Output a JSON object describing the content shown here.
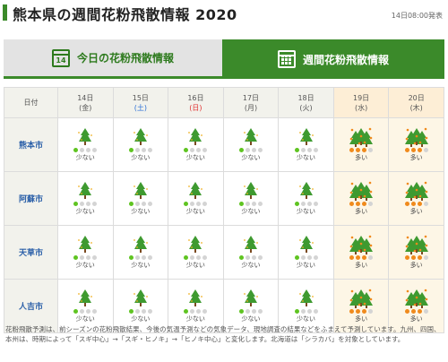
{
  "header": {
    "title": "熊本県の週間花粉飛散情報 2020",
    "stamp": "14日08:00発表"
  },
  "tabs": [
    {
      "label": "今日の花粉飛散情報",
      "icon": "calendar-day-icon",
      "icon_text": "14"
    },
    {
      "label": "週間花粉飛散情報",
      "icon": "calendar-week-icon"
    }
  ],
  "table": {
    "corner_label": "日付",
    "days": [
      {
        "date": "14日",
        "weekday": "(金)"
      },
      {
        "date": "15日",
        "weekday": "(土)"
      },
      {
        "date": "16日",
        "weekday": "(日)"
      },
      {
        "date": "17日",
        "weekday": "(月)"
      },
      {
        "date": "18日",
        "weekday": "(火)"
      },
      {
        "date": "19日",
        "weekday": "(水)"
      },
      {
        "date": "20日",
        "weekday": "(木)"
      }
    ],
    "rows": [
      {
        "city": "熊本市",
        "levels": [
          "少ない",
          "少ない",
          "少ない",
          "少ない",
          "少ない",
          "多い",
          "多い"
        ]
      },
      {
        "city": "阿蘇市",
        "levels": [
          "少ない",
          "少ない",
          "少ない",
          "少ない",
          "少ない",
          "多い",
          "多い"
        ]
      },
      {
        "city": "天草市",
        "levels": [
          "少ない",
          "少ない",
          "少ない",
          "少ない",
          "少ない",
          "多い",
          "多い"
        ]
      },
      {
        "city": "人吉市",
        "levels": [
          "少ない",
          "少ない",
          "少ない",
          "少ない",
          "少ない",
          "多い",
          "多い"
        ]
      }
    ]
  },
  "colors": {
    "brand_green": "#3b8a2a",
    "low_dot": "#5fc421",
    "high_dot": "#f08a1c",
    "empty_dot": "#d4d4d4",
    "sat": "#2a6fd6",
    "sun": "#e03030"
  },
  "note": "花粉飛散予測は、前シーズンの花粉飛散結果、今後の気温予測などの気象データ、現地調査の結果などをふまえて予測しています。九州、四国、本州は、時期によって「スギ中心」→「スギ・ヒノキ」→「ヒノキ中心」と変化します。北海道は「シラカバ」を対象としています。"
}
